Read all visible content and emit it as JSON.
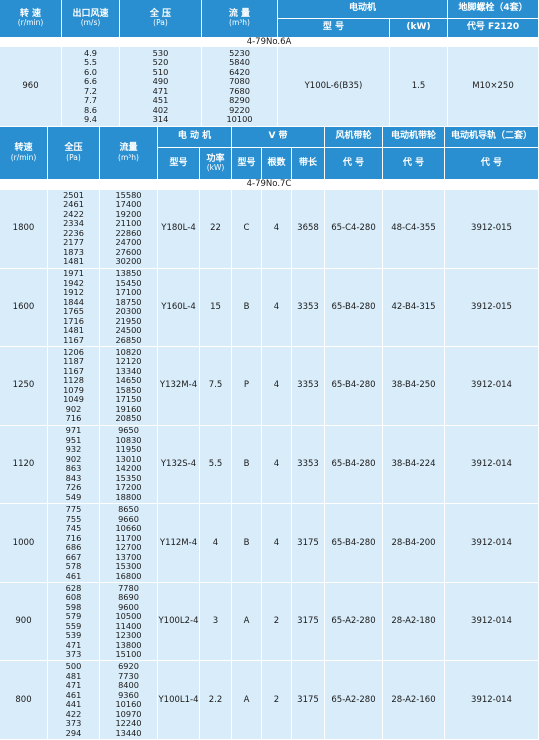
{
  "table1": {
    "columns": [
      {
        "title": "转 速",
        "unit": "(r/min)"
      },
      {
        "title": "出口风速",
        "unit": "(m/s)"
      },
      {
        "title": "全 压",
        "unit": "(Pa)"
      },
      {
        "title": "流 量",
        "unit": "(m³h)"
      }
    ],
    "motor": {
      "title": "电动机",
      "model": "型 号",
      "power": "(kW)"
    },
    "bolt": {
      "title": "地脚螺栓（4套）",
      "code": "代号 F2120"
    },
    "section": "4-79No.6A",
    "row": {
      "speed": "960",
      "outlet": [
        "4.9",
        "5.5",
        "6.0",
        "6.6",
        "7.2",
        "7.7",
        "8.6",
        "9.4"
      ],
      "pressure": [
        "530",
        "520",
        "510",
        "490",
        "471",
        "451",
        "402",
        "314"
      ],
      "flow": [
        "5230",
        "5840",
        "6420",
        "7080",
        "7680",
        "8290",
        "9220",
        "10100"
      ],
      "model": "Y100L-6(B35)",
      "power": "1.5",
      "bolt": "M10×250"
    }
  },
  "table2": {
    "columns": [
      {
        "title": "转速",
        "unit": "(r/min)"
      },
      {
        "title": "全压",
        "unit": "(Pa)"
      },
      {
        "title": "流量",
        "unit": "(m³h)"
      }
    ],
    "motor": {
      "title": "电 动 机",
      "model": "型号",
      "power": "功率",
      "power_unit": "(kW)"
    },
    "belt": {
      "title": "V 带",
      "model": "型号",
      "count": "根数",
      "length": "带长"
    },
    "fan_pulley": {
      "title": "风机带轮",
      "code": "代 号"
    },
    "motor_pulley": {
      "title": "电动机带轮",
      "code": "代 号"
    },
    "rail": {
      "title": "电动机导轨（二套）",
      "code": "代 号"
    },
    "section": "4-79No.7C",
    "rows": [
      {
        "speed": "1800",
        "pressure": [
          "2501",
          "2461",
          "2422",
          "2334",
          "2236",
          "2177",
          "1873",
          "1481"
        ],
        "flow": [
          "15580",
          "17400",
          "19200",
          "21100",
          "22860",
          "24700",
          "27600",
          "30200"
        ],
        "model": "Y180L-4",
        "power": "22",
        "belt": "C",
        "count": "4",
        "length": "3658",
        "fan_pulley": "65-C4-280",
        "motor_pulley": "48-C4-355",
        "rail": "3912-015"
      },
      {
        "speed": "1600",
        "pressure": [
          "1971",
          "1942",
          "1912",
          "1844",
          "1765",
          "1716",
          "1481",
          "1167"
        ],
        "flow": [
          "13850",
          "15450",
          "17100",
          "18750",
          "20300",
          "21950",
          "24500",
          "26850"
        ],
        "model": "Y160L-4",
        "power": "15",
        "belt": "B",
        "count": "4",
        "length": "3353",
        "fan_pulley": "65-B4-280",
        "motor_pulley": "42-B4-315",
        "rail": "3912-015"
      },
      {
        "speed": "1250",
        "pressure": [
          "1206",
          "1187",
          "1167",
          "1128",
          "1079",
          "1049",
          "902",
          "716"
        ],
        "flow": [
          "10820",
          "12120",
          "13340",
          "14650",
          "15850",
          "17150",
          "19160",
          "20850"
        ],
        "model": "Y132M-4",
        "power": "7.5",
        "belt": "P",
        "count": "4",
        "length": "3353",
        "fan_pulley": "65-B4-280",
        "motor_pulley": "38-B4-250",
        "rail": "3912-014"
      },
      {
        "speed": "1120",
        "pressure": [
          "971",
          "951",
          "932",
          "902",
          "863",
          "843",
          "726",
          "549"
        ],
        "flow": [
          "9650",
          "10830",
          "11950",
          "13010",
          "14200",
          "15350",
          "17200",
          "18800"
        ],
        "model": "Y132S-4",
        "power": "5.5",
        "belt": "B",
        "count": "4",
        "length": "3353",
        "fan_pulley": "65-B4-280",
        "motor_pulley": "38-B4-224",
        "rail": "3912-014"
      },
      {
        "speed": "1000",
        "pressure": [
          "775",
          "755",
          "745",
          "716",
          "686",
          "667",
          "578",
          "461"
        ],
        "flow": [
          "8650",
          "9660",
          "10660",
          "11700",
          "12700",
          "13700",
          "15300",
          "16800"
        ],
        "model": "Y112M-4",
        "power": "4",
        "belt": "B",
        "count": "4",
        "length": "3175",
        "fan_pulley": "65-B4-280",
        "motor_pulley": "28-B4-200",
        "rail": "3912-014"
      },
      {
        "speed": "900",
        "pressure": [
          "628",
          "608",
          "598",
          "579",
          "559",
          "539",
          "471",
          "373"
        ],
        "flow": [
          "7780",
          "8690",
          "9600",
          "10500",
          "11400",
          "12300",
          "13800",
          "15100"
        ],
        "model": "Y100L2-4",
        "power": "3",
        "belt": "A",
        "count": "2",
        "length": "3175",
        "fan_pulley": "65-A2-280",
        "motor_pulley": "28-A2-180",
        "rail": "3912-014"
      },
      {
        "speed": "800",
        "pressure": [
          "500",
          "481",
          "471",
          "461",
          "441",
          "422",
          "373",
          "294"
        ],
        "flow": [
          "6920",
          "7730",
          "8400",
          "9360",
          "10160",
          "10970",
          "12240",
          "13440"
        ],
        "model": "Y100L1-4",
        "power": "2.2",
        "belt": "A",
        "count": "2",
        "length": "3175",
        "fan_pulley": "65-A2-280",
        "motor_pulley": "28-A2-160",
        "rail": "3912-014"
      }
    ]
  }
}
